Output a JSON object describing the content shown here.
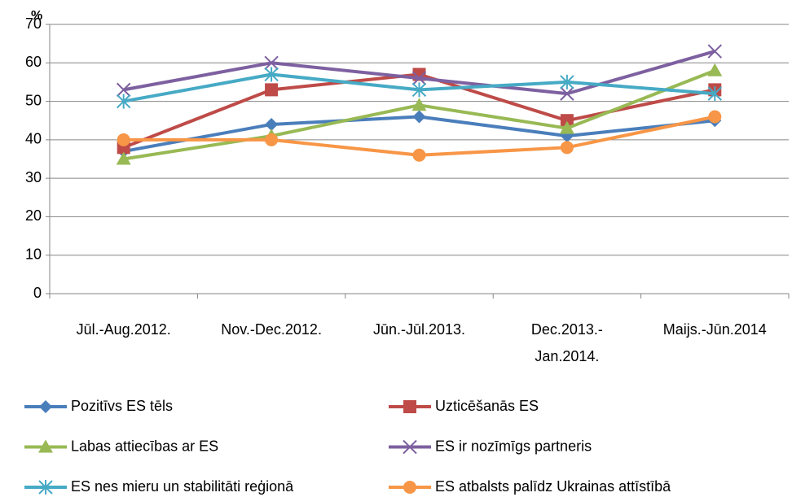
{
  "chart_data": {
    "type": "line",
    "y_label": "%",
    "categories": [
      "Jūl.-Aug.2012.",
      "Nov.-Dec.2012.",
      "Jūn.-Jūl.2013.",
      "Dec.2013.- Jan.2014.",
      "Maijs.-Jūn.2014"
    ],
    "series": [
      {
        "name": "Pozitīvs ES tēls",
        "color": "#4a7ebb",
        "marker": "diamond",
        "values": [
          37,
          44,
          46,
          41,
          45
        ]
      },
      {
        "name": "Uzticēšanās ES",
        "color": "#be4b48",
        "marker": "square",
        "values": [
          38,
          53,
          57,
          45,
          53
        ]
      },
      {
        "name": "Labas attiecības ar ES",
        "color": "#98b954",
        "marker": "triangle",
        "values": [
          35,
          41,
          49,
          43,
          58
        ]
      },
      {
        "name": "ES ir nozīmīgs partneris",
        "color": "#7d60a0",
        "marker": "x",
        "values": [
          53,
          60,
          56,
          52,
          63
        ]
      },
      {
        "name": "ES nes mieru un stabilitāti reģionā",
        "color": "#46aac5",
        "marker": "star",
        "values": [
          50,
          57,
          53,
          55,
          52
        ]
      },
      {
        "name": "ES atbalsts palīdz Ukrainas attīstībā",
        "color": "#f79646",
        "marker": "circle",
        "values": [
          40,
          40,
          36,
          38,
          46
        ]
      }
    ],
    "ylim": [
      0,
      70
    ],
    "yticks": [
      0,
      10,
      20,
      30,
      40,
      50,
      60,
      70
    ],
    "grid": true,
    "legend": "bottom"
  }
}
